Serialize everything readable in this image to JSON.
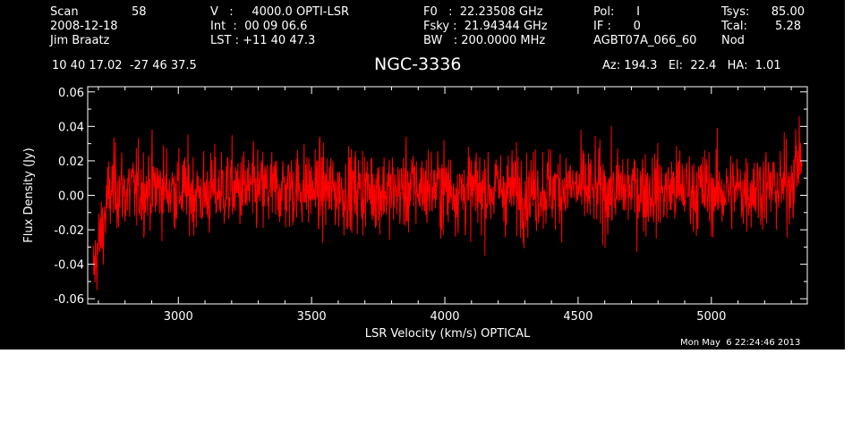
{
  "header": {
    "col1": [
      "Scan",
      "2008-12-18",
      "Jim Braatz"
    ],
    "scan_number": "58",
    "col2": [
      "V   :     4000.0 OPTI-LSR",
      "Int  :  00 09 06.6",
      "LST : +11 40 47.3"
    ],
    "col3": [
      "F0   :  22.23508 GHz",
      "Fsky :  21.94344 GHz",
      "BW   : 200.0000 MHz"
    ],
    "col4": [
      "Pol:      I",
      "IF :      0",
      "AGBT07A_066_60"
    ],
    "col4_extra": "Nod",
    "col5_labels": [
      "Tsys:",
      "Tcal:"
    ],
    "col5_values": [
      "85.00",
      "5.28"
    ]
  },
  "coords": "10 40 17.02  -27 46 37.5",
  "source_title": "NGC-3336",
  "pointing": "Az: 194.3   El:  22.4   HA:  1.01",
  "timestamp": "Mon May  6 22:24:46 2013",
  "chart_data": {
    "type": "line",
    "xlabel": "LSR Velocity (km/s) OPTICAL",
    "ylabel": "Flux Density (Jy)",
    "xlim": [
      2660,
      5360
    ],
    "ylim": [
      -0.063,
      0.063
    ],
    "x_ticks": [
      3000,
      3500,
      4000,
      4500,
      5000
    ],
    "x_tick_labels": [
      "3000",
      "3500",
      "4000",
      "4500",
      "5000"
    ],
    "y_ticks": [
      -0.06,
      -0.04,
      -0.02,
      0.0,
      0.02,
      0.04,
      0.06
    ],
    "y_tick_labels": [
      "-0.06",
      "-0.04",
      "-0.02",
      "0.00",
      "0.02",
      "0.04",
      "0.06"
    ],
    "line_color": "#ff0000",
    "background": "#000000",
    "axis_color": "#ffffff",
    "series": [
      {
        "x": [
          2680,
          2700,
          2720,
          2740,
          2760,
          2780,
          2800,
          2850,
          2900,
          2950,
          3000,
          3050,
          3100,
          3150,
          3200,
          3250,
          3300,
          3350,
          3400,
          3450,
          3500,
          3550,
          3600,
          3650,
          3700,
          3750,
          3800,
          3850,
          3900,
          3950,
          4000,
          4050,
          4100,
          4150,
          4200,
          4250,
          4300,
          4350,
          4400,
          4450,
          4500,
          4550,
          4600,
          4650,
          4700,
          4750,
          4800,
          4850,
          4900,
          4950,
          5000,
          5050,
          5100,
          5150,
          5200,
          5250,
          5300,
          5320,
          5340
        ],
        "y": [
          -0.045,
          -0.03,
          -0.015,
          0.0,
          0.005,
          0.004,
          0.002,
          0.003,
          0.005,
          0.004,
          0.003,
          0.002,
          0.0,
          0.003,
          0.004,
          0.003,
          0.002,
          0.003,
          0.004,
          0.005,
          0.004,
          0.003,
          0.002,
          0.003,
          0.004,
          0.003,
          0.002,
          0.003,
          0.004,
          0.005,
          0.004,
          0.003,
          0.002,
          0.003,
          0.004,
          0.003,
          0.002,
          0.003,
          0.004,
          0.005,
          0.004,
          0.003,
          0.002,
          0.003,
          0.004,
          0.003,
          0.002,
          0.003,
          0.004,
          0.003,
          0.003,
          0.002,
          0.003,
          0.004,
          0.005,
          0.004,
          0.008,
          0.018,
          0.025
        ],
        "noise_rms": 0.012
      }
    ]
  }
}
